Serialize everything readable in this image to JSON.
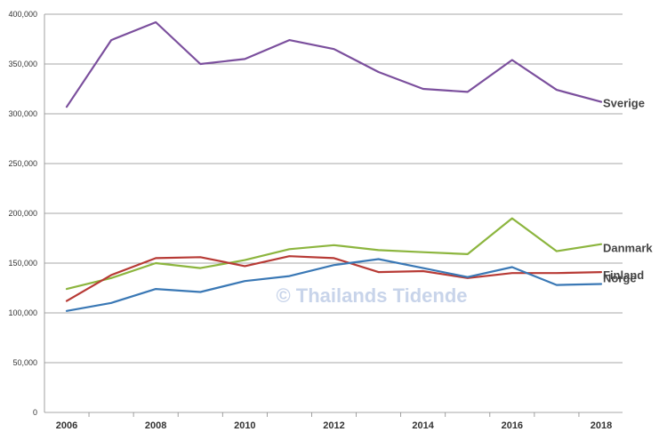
{
  "watermark": "© Thailands Tidende",
  "chart_data": {
    "type": "line",
    "x": [
      2006,
      2007,
      2008,
      2009,
      2010,
      2011,
      2012,
      2013,
      2014,
      2015,
      2016,
      2017,
      2018
    ],
    "x_tick_labels": [
      "2006",
      "2008",
      "2010",
      "2012",
      "2014",
      "2016",
      "2018"
    ],
    "y_tick_labels": [
      "0",
      "50,000",
      "100,000",
      "150,000",
      "200,000",
      "250,000",
      "300,000",
      "350,000",
      "400,000"
    ],
    "ylim": [
      0,
      400000
    ],
    "grid": "horizontal",
    "series": [
      {
        "name": "Sverige",
        "color": "#7b4f9d",
        "values": [
          307000,
          374000,
          392000,
          350000,
          355000,
          374000,
          365000,
          342000,
          325000,
          322000,
          354000,
          324000,
          312000
        ]
      },
      {
        "name": "Danmark",
        "color": "#8cb53e",
        "values": [
          124000,
          135000,
          150000,
          145000,
          153000,
          164000,
          168000,
          163000,
          161000,
          159000,
          195000,
          162000,
          169000
        ]
      },
      {
        "name": "Finland",
        "color": "#b73a35",
        "values": [
          112000,
          138000,
          155000,
          156000,
          147000,
          157000,
          155000,
          141000,
          142000,
          135000,
          140000,
          140000,
          141000
        ]
      },
      {
        "name": "Norge",
        "color": "#3a78b5",
        "values": [
          102000,
          110000,
          124000,
          121000,
          132000,
          137000,
          148000,
          154000,
          145000,
          136000,
          146000,
          128000,
          129000
        ]
      }
    ]
  }
}
